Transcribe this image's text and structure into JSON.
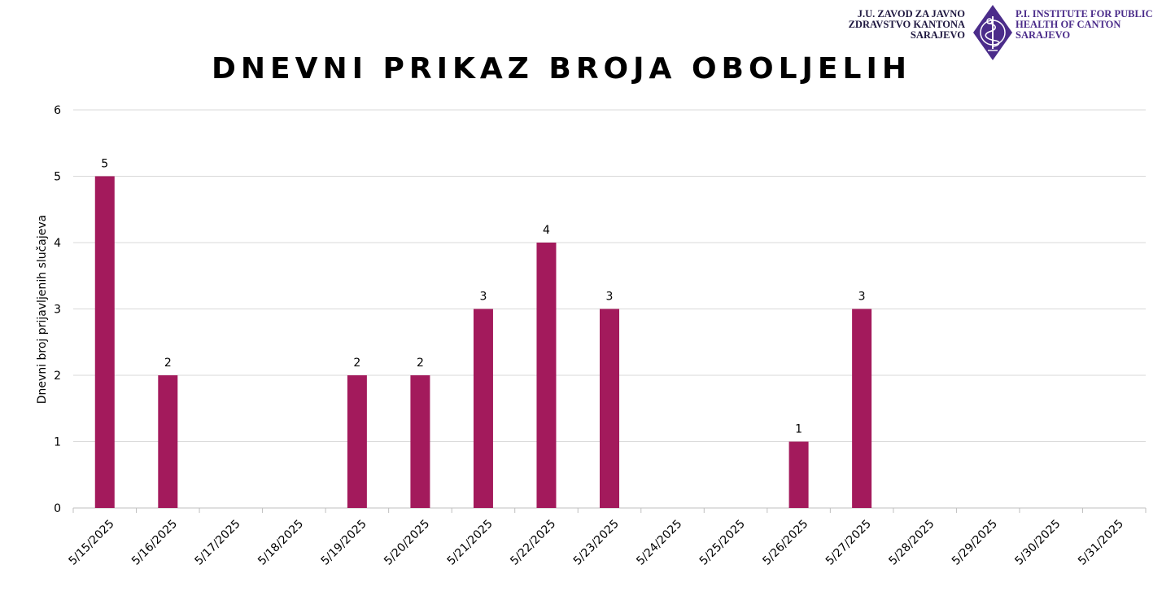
{
  "logo": {
    "left_lines": [
      "J.U. ZAVOD ZA JAVNO",
      "ZDRAVSTVO KANTONA",
      "SARAJEVO"
    ],
    "right_lines": [
      "P.I. INSTITUTE FOR PUBLIC",
      "HEALTH OF CANTON",
      "SARAJEVO"
    ],
    "emblem_icon": "caduceus-diamond-icon",
    "colors": {
      "emblem": "#4b2c8a",
      "text_left": "#1f1840",
      "text_right": "#4b2c8a"
    }
  },
  "chart_data": {
    "type": "bar",
    "title": "DNEVNI PRIKAZ BROJA OBOLJELIH",
    "xlabel": "",
    "ylabel": "Dnevni broj prijavljenih slučajeva",
    "ylim": [
      0,
      6
    ],
    "yticks": [
      0,
      1,
      2,
      3,
      4,
      5,
      6
    ],
    "grid": true,
    "legend": "none",
    "bar_color": "#a31a5c",
    "categories": [
      "5/15/2025",
      "5/16/2025",
      "5/17/2025",
      "5/18/2025",
      "5/19/2025",
      "5/20/2025",
      "5/21/2025",
      "5/22/2025",
      "5/23/2025",
      "5/24/2025",
      "5/25/2025",
      "5/26/2025",
      "5/27/2025",
      "5/28/2025",
      "5/29/2025",
      "5/30/2025",
      "5/31/2025"
    ],
    "values": [
      5,
      2,
      null,
      null,
      2,
      2,
      3,
      4,
      3,
      null,
      null,
      1,
      3,
      null,
      null,
      null,
      null
    ]
  }
}
